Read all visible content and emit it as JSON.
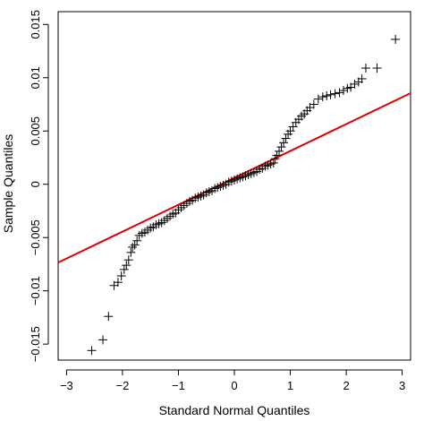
{
  "chart_data": {
    "type": "scatter",
    "title": "",
    "xlabel": "Standard Normal Quantiles",
    "ylabel": "Sample Quantiles",
    "xlim": [
      -3.15,
      3.15
    ],
    "ylim": [
      -0.0165,
      0.0162
    ],
    "xticks": [
      -3,
      -2,
      -1,
      0,
      1,
      2,
      3
    ],
    "xtick_labels": [
      "−3",
      "−2",
      "−1",
      "0",
      "1",
      "2",
      "3"
    ],
    "yticks": [
      -0.015,
      -0.01,
      -0.005,
      0,
      0.005,
      0.01,
      0.015
    ],
    "ytick_labels": [
      "−0.015",
      "−0.01",
      "−0.005",
      "0",
      "0.005",
      "0.01",
      "0.015"
    ],
    "grid": false,
    "marker": "+",
    "series": [
      {
        "values": [
          [
            -2.55,
            -0.0156
          ],
          [
            -2.35,
            -0.0146
          ],
          [
            -2.25,
            -0.0124
          ],
          [
            -2.15,
            -0.0095
          ],
          [
            -2.08,
            -0.0092
          ],
          [
            -2.02,
            -0.0086
          ],
          [
            -1.97,
            -0.008
          ],
          [
            -1.93,
            -0.0076
          ],
          [
            -1.89,
            -0.0071
          ],
          [
            -1.85,
            -0.0064
          ],
          [
            -1.82,
            -0.0059
          ],
          [
            -1.78,
            -0.0057
          ],
          [
            -1.74,
            -0.0053
          ],
          [
            -1.7,
            -0.0048
          ],
          [
            -1.65,
            -0.0046
          ],
          [
            -1.6,
            -0.0045
          ],
          [
            -1.55,
            -0.0043
          ],
          [
            -1.5,
            -0.0041
          ],
          [
            -1.45,
            -0.004
          ],
          [
            -1.4,
            -0.0038
          ],
          [
            -1.35,
            -0.0037
          ],
          [
            -1.3,
            -0.0036
          ],
          [
            -1.25,
            -0.0034
          ],
          [
            -1.2,
            -0.0032
          ],
          [
            -1.15,
            -0.003
          ],
          [
            -1.1,
            -0.0028
          ],
          [
            -1.05,
            -0.0027
          ],
          [
            -1.0,
            -0.0024
          ],
          [
            -0.95,
            -0.0022
          ],
          [
            -0.9,
            -0.002
          ],
          [
            -0.85,
            -0.0018
          ],
          [
            -0.8,
            -0.0016
          ],
          [
            -0.75,
            -0.0015
          ],
          [
            -0.7,
            -0.0013
          ],
          [
            -0.65,
            -0.0012
          ],
          [
            -0.6,
            -0.0011
          ],
          [
            -0.55,
            -0.001
          ],
          [
            -0.5,
            -0.0008
          ],
          [
            -0.45,
            -0.0007
          ],
          [
            -0.4,
            -0.0006
          ],
          [
            -0.35,
            -0.0004
          ],
          [
            -0.3,
            -0.0003
          ],
          [
            -0.25,
            -0.0002
          ],
          [
            -0.2,
            -0.0001
          ],
          [
            -0.15,
            0.0
          ],
          [
            -0.1,
            0.0002
          ],
          [
            -0.05,
            0.0003
          ],
          [
            0.0,
            0.0004
          ],
          [
            0.05,
            0.0005
          ],
          [
            0.1,
            0.0006
          ],
          [
            0.15,
            0.0007
          ],
          [
            0.2,
            0.0008
          ],
          [
            0.25,
            0.0009
          ],
          [
            0.3,
            0.001
          ],
          [
            0.35,
            0.0011
          ],
          [
            0.4,
            0.0012
          ],
          [
            0.45,
            0.0014
          ],
          [
            0.5,
            0.0015
          ],
          [
            0.55,
            0.0017
          ],
          [
            0.6,
            0.0018
          ],
          [
            0.65,
            0.0019
          ],
          [
            0.7,
            0.002
          ],
          [
            0.73,
            0.0024
          ],
          [
            0.76,
            0.0027
          ],
          [
            0.8,
            0.0031
          ],
          [
            0.84,
            0.0035
          ],
          [
            0.88,
            0.0039
          ],
          [
            0.92,
            0.0043
          ],
          [
            0.96,
            0.0047
          ],
          [
            1.0,
            0.005
          ],
          [
            1.05,
            0.0054
          ],
          [
            1.1,
            0.0058
          ],
          [
            1.15,
            0.0061
          ],
          [
            1.2,
            0.0064
          ],
          [
            1.25,
            0.0066
          ],
          [
            1.3,
            0.0069
          ],
          [
            1.35,
            0.0072
          ],
          [
            1.42,
            0.0075
          ],
          [
            1.5,
            0.008
          ],
          [
            1.58,
            0.0082
          ],
          [
            1.65,
            0.0083
          ],
          [
            1.72,
            0.0084
          ],
          [
            1.8,
            0.0085
          ],
          [
            1.88,
            0.0086
          ],
          [
            1.95,
            0.0088
          ],
          [
            2.02,
            0.009
          ],
          [
            2.08,
            0.0091
          ],
          [
            2.15,
            0.0094
          ],
          [
            2.22,
            0.0096
          ],
          [
            2.28,
            0.0099
          ],
          [
            2.35,
            0.0109
          ],
          [
            2.55,
            0.0109
          ],
          [
            2.88,
            0.0136
          ]
        ]
      }
    ],
    "reference_line": {
      "color": "#dd0000",
      "points": [
        [
          -3.15,
          -0.00735
        ],
        [
          3.15,
          0.00855
        ]
      ]
    }
  }
}
